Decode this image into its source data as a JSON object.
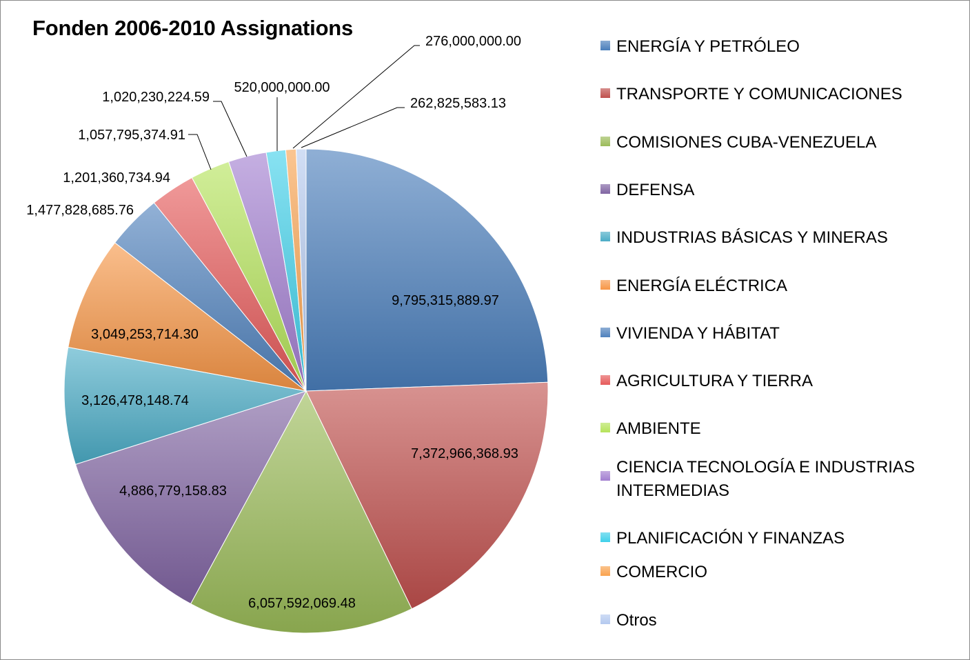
{
  "chart_data": {
    "type": "pie",
    "title": "Fonden 2006-2010 Assignations",
    "legend_position": "right",
    "slices": [
      {
        "name": "ENERGÍA Y PETRÓLEO",
        "value": 9795315889.97,
        "label": "9,795,315,889.97",
        "color": "#4a7ebb"
      },
      {
        "name": "TRANSPORTE Y COMUNICACIONES",
        "value": 7372966368.93,
        "label": "7,372,966,368.93",
        "color": "#c0504d"
      },
      {
        "name": "COMISIONES CUBA-VENEZUELA",
        "value": 6057592069.48,
        "label": "6,057,592,069.48",
        "color": "#9bbb59"
      },
      {
        "name": "DEFENSA",
        "value": 4886779158.83,
        "label": "4,886,779,158.83",
        "color": "#8064a2"
      },
      {
        "name": "INDUSTRIAS BÁSICAS Y MINERAS",
        "value": 3126478148.74,
        "label": "3,126,478,148.74",
        "color": "#4bacc6"
      },
      {
        "name": "ENERGÍA ELÉCTRICA",
        "value": 3049253714.3,
        "label": "3,049,253,714.30",
        "color": "#f79646"
      },
      {
        "name": "VIVIENDA Y HÁBITAT",
        "value": 1477828685.76,
        "label": "1,477,828,685.76",
        "color": "#4f81bd"
      },
      {
        "name": "AGRICULTURA Y TIERRA",
        "value": 1201360734.94,
        "label": "1,201,360,734.94",
        "color": "#e65a5a"
      },
      {
        "name": "AMBIENTE",
        "value": 1057795374.91,
        "label": "1,057,795,374.91",
        "color": "#b5e35a"
      },
      {
        "name": "CIENCIA TECNOLOGÍA E INDUSTRIAS INTERMEDIAS",
        "value": 1020230224.59,
        "label": "1,020,230,224.59",
        "color": "#a27ed0"
      },
      {
        "name": "PLANIFICACIÓN Y FINANZAS",
        "value": 520000000.0,
        "label": "520,000,000.00",
        "color": "#3fd0ea"
      },
      {
        "name": "COMERCIO",
        "value": 276000000.0,
        "label": "276,000,000.00",
        "color": "#f9a24e"
      },
      {
        "name": "Otros",
        "value": 262825583.13,
        "label": "262,825,583.13",
        "color": "#b4c9ef"
      }
    ]
  }
}
